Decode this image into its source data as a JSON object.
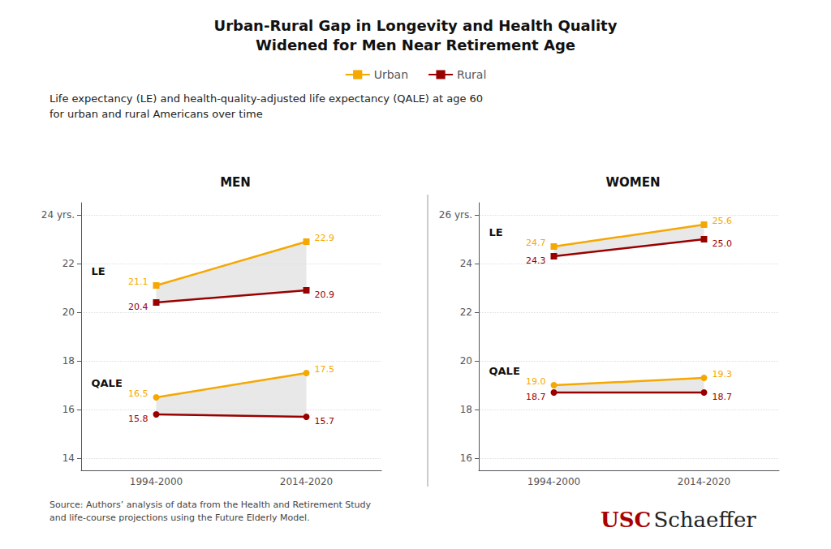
{
  "title": "Urban-Rural Gap in Longevity and Health Quality\nWidened for Men Near Retirement Age",
  "subtitle": "Life expectancy (LE) and health-quality-adjusted life expectancy (QALE) at age 60\nfor urban and rural Americans over time",
  "legend": "top",
  "annotations": [
    {
      "text": "Source: Authors’ analysis of data from the Health and Retirement Study\nand life-course projections using the Future Elderly Model."
    },
    {
      "text": "USC",
      "color": "#AA0000"
    },
    {
      "text": "Schaeffer"
    }
  ],
  "chart_data": [
    {
      "type": "line",
      "title": "MEN",
      "categories": [
        "1994-2000",
        "2014-2020"
      ],
      "series": [
        {
          "name": "Urban",
          "color": "#F5A800",
          "marker": "square",
          "values": [
            21.1,
            22.9
          ]
        },
        {
          "name": "Rural",
          "color": "#990000",
          "marker": "square",
          "values": [
            20.4,
            20.9
          ]
        },
        {
          "name": "Urban",
          "color": "#F5A800",
          "marker": "circle",
          "values": [
            16.5,
            17.5
          ]
        },
        {
          "name": "Rural",
          "color": "#990000",
          "marker": "circle",
          "values": [
            15.8,
            15.7
          ]
        }
      ],
      "annotations": [
        "LE",
        "QALE"
      ],
      "ylim": [
        13.5,
        24.5
      ],
      "yticks": [
        14,
        16,
        18,
        20,
        22,
        {
          "value": 24,
          "label": "24 yrs."
        }
      ],
      "grid": true,
      "data_labels": true
    },
    {
      "type": "line",
      "title": "WOMEN",
      "categories": [
        "1994-2000",
        "2014-2020"
      ],
      "series": [
        {
          "name": "Urban",
          "color": "#F5A800",
          "marker": "square",
          "values": [
            24.7,
            25.6
          ]
        },
        {
          "name": "Rural",
          "color": "#990000",
          "marker": "square",
          "values": [
            24.3,
            25.0
          ],
          "value_labels": [
            "24.3",
            "25.0"
          ]
        },
        {
          "name": "Urban",
          "color": "#F5A800",
          "marker": "circle",
          "values": [
            19.0,
            19.3
          ],
          "value_labels": [
            "19.0",
            "19.3"
          ]
        },
        {
          "name": "Rural",
          "color": "#990000",
          "marker": "circle",
          "values": [
            18.7,
            18.7
          ]
        }
      ],
      "annotations": [
        "LE",
        "QALE"
      ],
      "ylim": [
        15.5,
        26.5
      ],
      "yticks": [
        16,
        18,
        20,
        22,
        24,
        {
          "value": 26,
          "label": "26 yrs."
        }
      ],
      "grid": true,
      "data_labels": true
    }
  ]
}
